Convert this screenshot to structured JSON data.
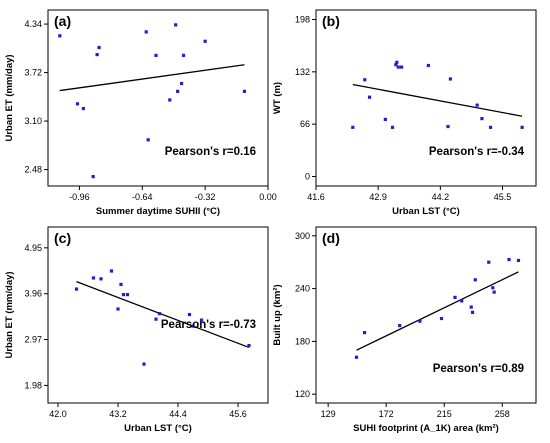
{
  "chart_data": [
    {
      "type": "scatter",
      "panel_label": "(a)",
      "xlabel": "Summer daytime SUHII (°C)",
      "ylabel": "Urban ET (mm/day)",
      "annotation": "Pearson's r=0.16",
      "xlim": [
        -1.12,
        0.0
      ],
      "ylim": [
        2.27,
        4.52
      ],
      "xticks": [
        "-0.96",
        "-0.64",
        "-0.32",
        "0.00"
      ],
      "xtick_values": [
        -0.96,
        -0.64,
        -0.32,
        0.0
      ],
      "yticks": [
        "2.48",
        "3.10",
        "3.72",
        "4.34"
      ],
      "ytick_values": [
        2.48,
        3.1,
        3.72,
        4.34
      ],
      "points": [
        {
          "x": -1.06,
          "y": 4.19
        },
        {
          "x": -0.97,
          "y": 3.32
        },
        {
          "x": -0.94,
          "y": 3.26
        },
        {
          "x": -0.87,
          "y": 3.95
        },
        {
          "x": -0.86,
          "y": 4.04
        },
        {
          "x": -0.89,
          "y": 2.39
        },
        {
          "x": -0.62,
          "y": 4.24
        },
        {
          "x": -0.61,
          "y": 2.86
        },
        {
          "x": -0.57,
          "y": 3.94
        },
        {
          "x": -0.5,
          "y": 3.37
        },
        {
          "x": -0.47,
          "y": 4.33
        },
        {
          "x": -0.46,
          "y": 3.48
        },
        {
          "x": -0.44,
          "y": 3.58
        },
        {
          "x": -0.43,
          "y": 3.94
        },
        {
          "x": -0.32,
          "y": 4.12
        },
        {
          "x": -0.12,
          "y": 3.48
        }
      ],
      "fit_line": {
        "x1": -1.06,
        "y1": 3.49,
        "x2": -0.12,
        "y2": 3.82
      }
    },
    {
      "type": "scatter",
      "panel_label": "(b)",
      "xlabel": "Urban LST (°C)",
      "ylabel": "WT (m)",
      "annotation": "Pearson's r=-0.34",
      "xlim": [
        41.6,
        46.2
      ],
      "ylim": [
        -12,
        210
      ],
      "xticks": [
        "41.6",
        "42.9",
        "44.2",
        "45.5"
      ],
      "xtick_values": [
        41.6,
        42.9,
        44.2,
        45.5
      ],
      "yticks": [
        "0",
        "66",
        "132",
        "198"
      ],
      "ytick_values": [
        0,
        66,
        132,
        198
      ],
      "points": [
        {
          "x": 42.37,
          "y": 62
        },
        {
          "x": 42.62,
          "y": 122
        },
        {
          "x": 42.72,
          "y": 100
        },
        {
          "x": 43.05,
          "y": 72
        },
        {
          "x": 43.2,
          "y": 62
        },
        {
          "x": 43.27,
          "y": 141
        },
        {
          "x": 43.29,
          "y": 144
        },
        {
          "x": 43.32,
          "y": 138
        },
        {
          "x": 43.39,
          "y": 138
        },
        {
          "x": 43.95,
          "y": 140
        },
        {
          "x": 44.36,
          "y": 63
        },
        {
          "x": 44.41,
          "y": 123
        },
        {
          "x": 44.97,
          "y": 90
        },
        {
          "x": 45.07,
          "y": 73
        },
        {
          "x": 45.25,
          "y": 62
        },
        {
          "x": 45.91,
          "y": 62
        }
      ],
      "fit_line": {
        "x1": 42.37,
        "y1": 116,
        "x2": 45.91,
        "y2": 76
      }
    },
    {
      "type": "scatter",
      "panel_label": "(c)",
      "xlabel": "Urban LST (°C)",
      "ylabel": "Urban ET (mm/day)",
      "annotation": "Pearson's r=-0.73",
      "xlim": [
        41.8,
        46.2
      ],
      "ylim": [
        1.6,
        5.4
      ],
      "xticks": [
        "42.0",
        "43.2",
        "44.4",
        "45.6"
      ],
      "xtick_values": [
        42.0,
        43.2,
        44.4,
        45.6
      ],
      "yticks": [
        "1.98",
        "2.97",
        "3.96",
        "4.95"
      ],
      "ytick_values": [
        1.98,
        2.97,
        3.96,
        4.95
      ],
      "points": [
        {
          "x": 42.37,
          "y": 4.06
        },
        {
          "x": 42.71,
          "y": 4.3
        },
        {
          "x": 42.86,
          "y": 4.28
        },
        {
          "x": 43.07,
          "y": 4.45
        },
        {
          "x": 43.2,
          "y": 3.63
        },
        {
          "x": 43.26,
          "y": 4.16
        },
        {
          "x": 43.31,
          "y": 3.94
        },
        {
          "x": 43.39,
          "y": 3.94
        },
        {
          "x": 43.72,
          "y": 2.44
        },
        {
          "x": 43.96,
          "y": 3.41
        },
        {
          "x": 44.03,
          "y": 3.53
        },
        {
          "x": 44.63,
          "y": 3.51
        },
        {
          "x": 44.7,
          "y": 3.26
        },
        {
          "x": 44.87,
          "y": 3.39
        },
        {
          "x": 45.82,
          "y": 2.84
        }
      ],
      "fit_line": {
        "x1": 42.37,
        "y1": 4.22,
        "x2": 45.82,
        "y2": 2.8
      }
    },
    {
      "type": "scatter",
      "panel_label": "(d)",
      "xlabel": "SUHI footprint (A_1K) area (km²)",
      "ylabel": "Built up (km²)",
      "annotation": "Pearson's r=0.89",
      "xlim": [
        120,
        283
      ],
      "ylim": [
        110,
        310
      ],
      "xticks": [
        "129",
        "172",
        "215",
        "258"
      ],
      "xtick_values": [
        129,
        172,
        215,
        258
      ],
      "yticks": [
        "120",
        "180",
        "240",
        "300"
      ],
      "ytick_values": [
        120,
        180,
        240,
        300
      ],
      "points": [
        {
          "x": 150,
          "y": 162
        },
        {
          "x": 156,
          "y": 190
        },
        {
          "x": 182,
          "y": 198
        },
        {
          "x": 197,
          "y": 203
        },
        {
          "x": 213,
          "y": 206
        },
        {
          "x": 223,
          "y": 230
        },
        {
          "x": 228,
          "y": 226
        },
        {
          "x": 235,
          "y": 219
        },
        {
          "x": 236,
          "y": 213
        },
        {
          "x": 238,
          "y": 250
        },
        {
          "x": 248,
          "y": 270
        },
        {
          "x": 251,
          "y": 241
        },
        {
          "x": 252,
          "y": 236
        },
        {
          "x": 263,
          "y": 273
        },
        {
          "x": 270,
          "y": 272
        }
      ],
      "fit_line": {
        "x1": 150,
        "y1": 170,
        "x2": 270,
        "y2": 259
      }
    }
  ]
}
